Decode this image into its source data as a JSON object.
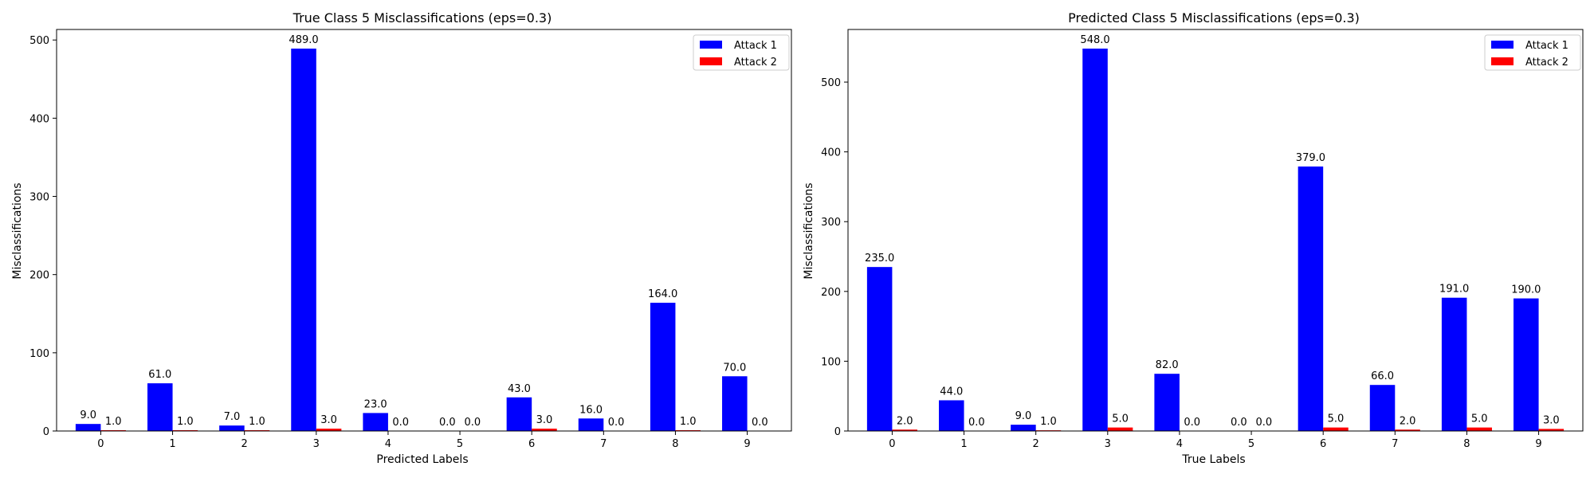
{
  "chart_data": [
    {
      "type": "bar",
      "title": "True Class 5 Misclassifications (eps=0.3)",
      "xlabel": "Predicted Labels",
      "ylabel": "Misclassifications",
      "categories": [
        "0",
        "1",
        "2",
        "3",
        "4",
        "5",
        "6",
        "7",
        "8",
        "9"
      ],
      "series": [
        {
          "name": "Attack 1",
          "color": "#0000ff",
          "values": [
            9.0,
            61.0,
            7.0,
            489.0,
            23.0,
            0.0,
            43.0,
            16.0,
            164.0,
            70.0
          ]
        },
        {
          "name": "Attack 2",
          "color": "#ff0000",
          "values": [
            1.0,
            1.0,
            1.0,
            3.0,
            0.0,
            0.0,
            3.0,
            0.0,
            1.0,
            0.0
          ]
        }
      ],
      "data_labels": [
        [
          "9.0",
          "61.0",
          "7.0",
          "489.0",
          "23.0",
          "0.0",
          "43.0",
          "16.0",
          "164.0",
          "70.0"
        ],
        [
          "1.0",
          "1.0",
          "1.0",
          "3.0",
          "0.0",
          "0.0",
          "3.0",
          "0.0",
          "1.0",
          "0.0"
        ]
      ],
      "yticks": [
        0,
        100,
        200,
        300,
        400,
        500
      ],
      "ytick_labels": [
        "0",
        "100",
        "200",
        "300",
        "400",
        "500"
      ],
      "ylim": [
        0,
        513.45
      ],
      "legend": "top-right"
    },
    {
      "type": "bar",
      "title": "Predicted Class 5 Misclassifications (eps=0.3)",
      "xlabel": "True Labels",
      "ylabel": "Misclassifications",
      "categories": [
        "0",
        "1",
        "2",
        "3",
        "4",
        "5",
        "6",
        "7",
        "8",
        "9"
      ],
      "series": [
        {
          "name": "Attack 1",
          "color": "#0000ff",
          "values": [
            235.0,
            44.0,
            9.0,
            548.0,
            82.0,
            0.0,
            379.0,
            66.0,
            191.0,
            190.0
          ]
        },
        {
          "name": "Attack 2",
          "color": "#ff0000",
          "values": [
            2.0,
            0.0,
            1.0,
            5.0,
            0.0,
            0.0,
            5.0,
            2.0,
            5.0,
            3.0
          ]
        }
      ],
      "data_labels": [
        [
          "235.0",
          "44.0",
          "9.0",
          "548.0",
          "82.0",
          "0.0",
          "379.0",
          "66.0",
          "191.0",
          "190.0"
        ],
        [
          "2.0",
          "0.0",
          "1.0",
          "5.0",
          "0.0",
          "0.0",
          "5.0",
          "2.0",
          "5.0",
          "3.0"
        ]
      ],
      "yticks": [
        0,
        100,
        200,
        300,
        400,
        500
      ],
      "ytick_labels": [
        "0",
        "100",
        "200",
        "300",
        "400",
        "500"
      ],
      "ylim": [
        0,
        575.4
      ],
      "legend": "top-right"
    }
  ]
}
